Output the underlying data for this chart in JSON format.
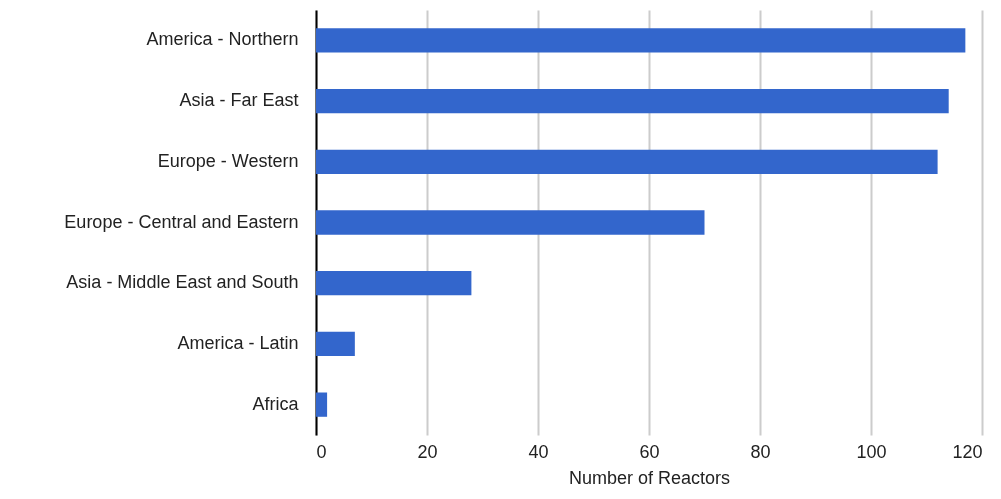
{
  "chart_data": {
    "type": "bar",
    "orientation": "horizontal",
    "xlabel": "Number of Reactors",
    "categories": [
      "America - Northern",
      "Asia - Far East",
      "Europe - Western",
      "Europe - Central and Eastern",
      "Asia - Middle East and South",
      "America - Latin",
      "Africa"
    ],
    "values": [
      117,
      114,
      112,
      70,
      28,
      7,
      2
    ],
    "color": "#3366cc",
    "xlim": [
      0,
      120
    ],
    "xticks": [
      0,
      20,
      40,
      60,
      80,
      100,
      120
    ],
    "grid": "x"
  }
}
